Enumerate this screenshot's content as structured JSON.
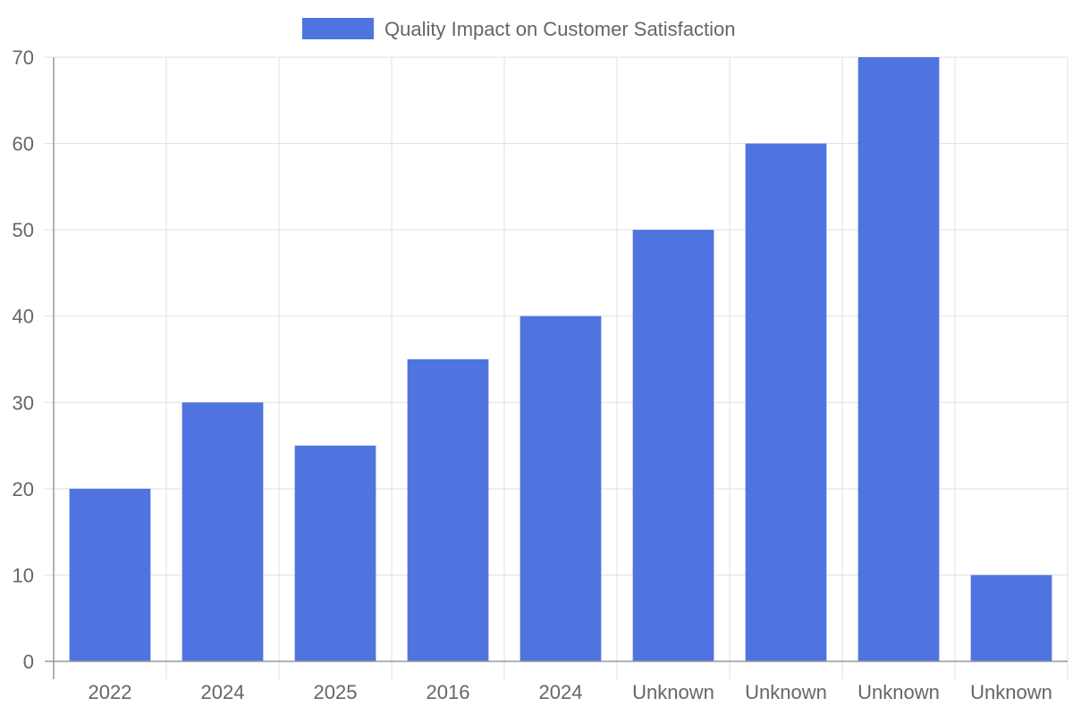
{
  "chart_data": {
    "type": "bar",
    "categories": [
      "2022",
      "2024",
      "2025",
      "2016",
      "2024",
      "Unknown",
      "Unknown",
      "Unknown",
      "Unknown"
    ],
    "series": [
      {
        "name": "Quality Impact on Customer Satisfaction",
        "values": [
          20,
          30,
          25,
          35,
          40,
          50,
          60,
          70,
          10
        ],
        "color": "#4f74e0"
      }
    ],
    "ylim": [
      0,
      70
    ],
    "yticks": [
      0,
      10,
      20,
      30,
      40,
      50,
      60,
      70
    ],
    "grid": true,
    "legend_position": "top-center"
  },
  "colors": {
    "grid": "#e0e0e0",
    "axis": "#999999",
    "text": "#666666",
    "bar": "#4f74e0"
  }
}
